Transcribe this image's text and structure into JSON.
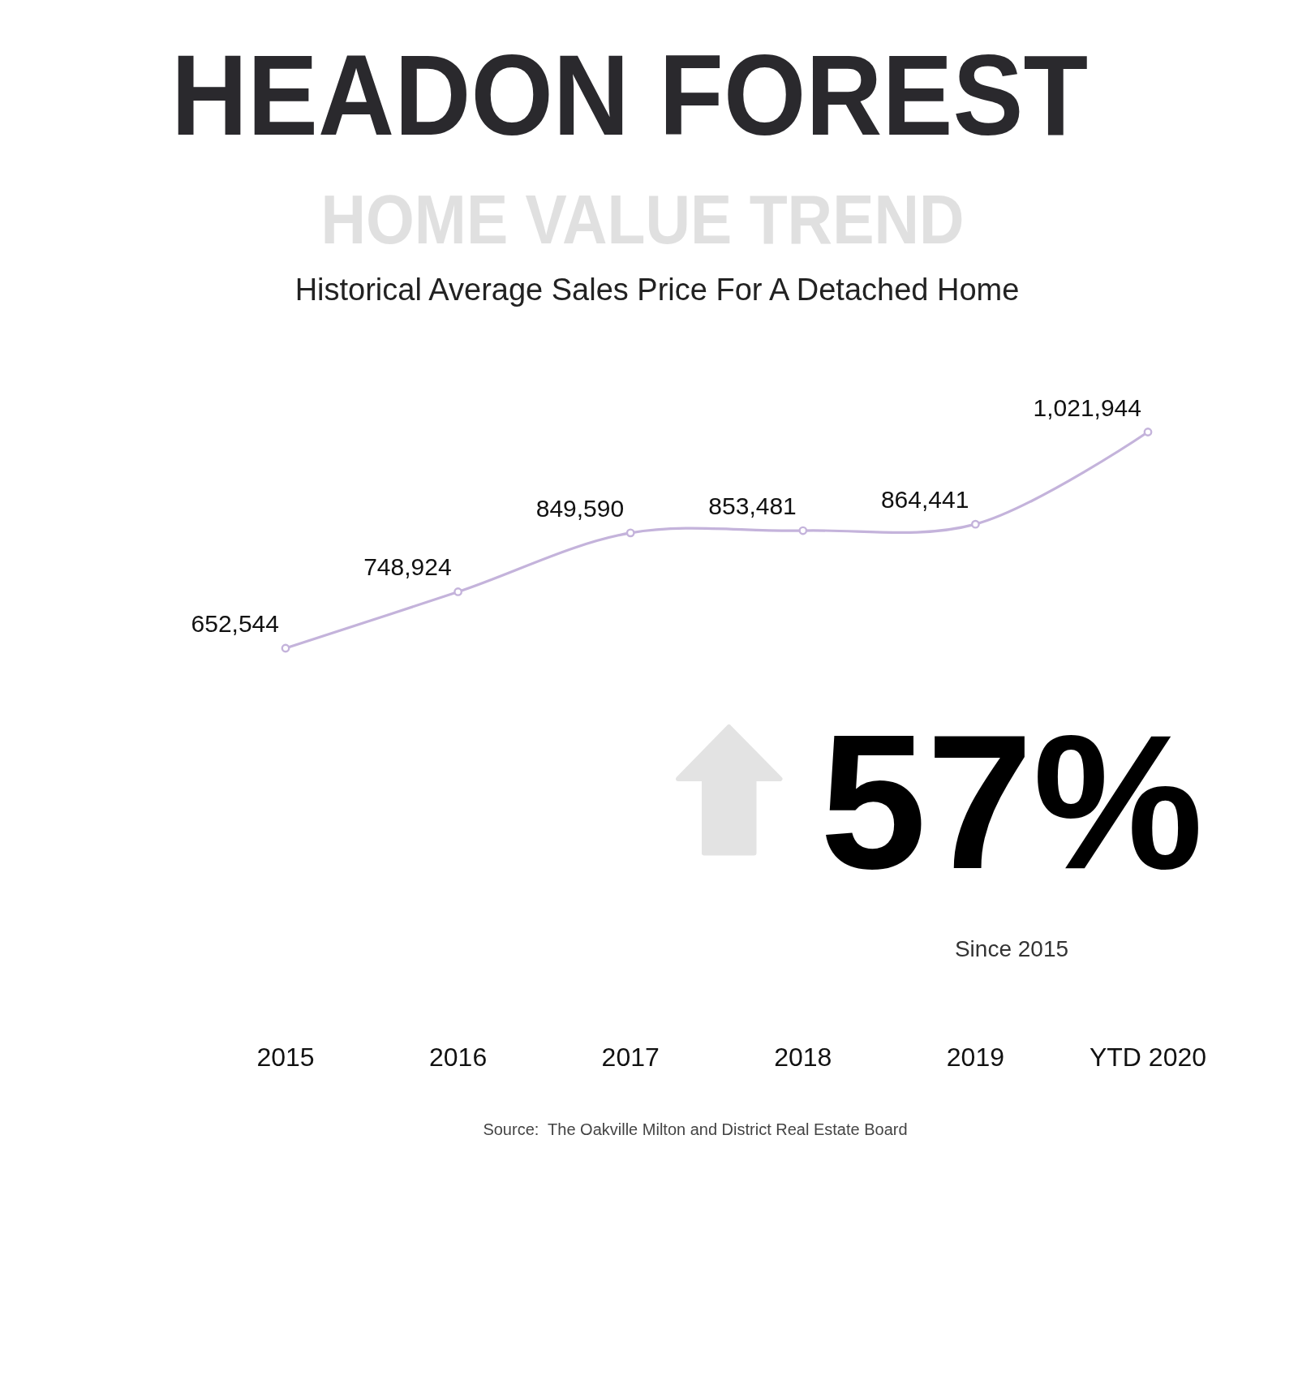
{
  "chart_data": {
    "type": "line",
    "title": "HEADON FOREST",
    "subtitle": "HOME VALUE TREND",
    "annotations": [
      "Historical Average Sales Price For A Detached Home",
      "57%",
      "Since 2015",
      "Source:  The Oakville Milton and District Real Estate Board"
    ],
    "categories": [
      "2015",
      "2016",
      "2017",
      "2018",
      "2019",
      "YTD 2020"
    ],
    "series": [
      {
        "color": "#c4b3db",
        "values": [
          652544,
          748924,
          849590,
          853481,
          864441,
          1021944
        ],
        "value_labels": [
          "652,544",
          "748,924",
          "849,590",
          "853,481",
          "864,441",
          "1,021,944"
        ]
      }
    ],
    "marker": "circle",
    "line_style": "solid"
  }
}
